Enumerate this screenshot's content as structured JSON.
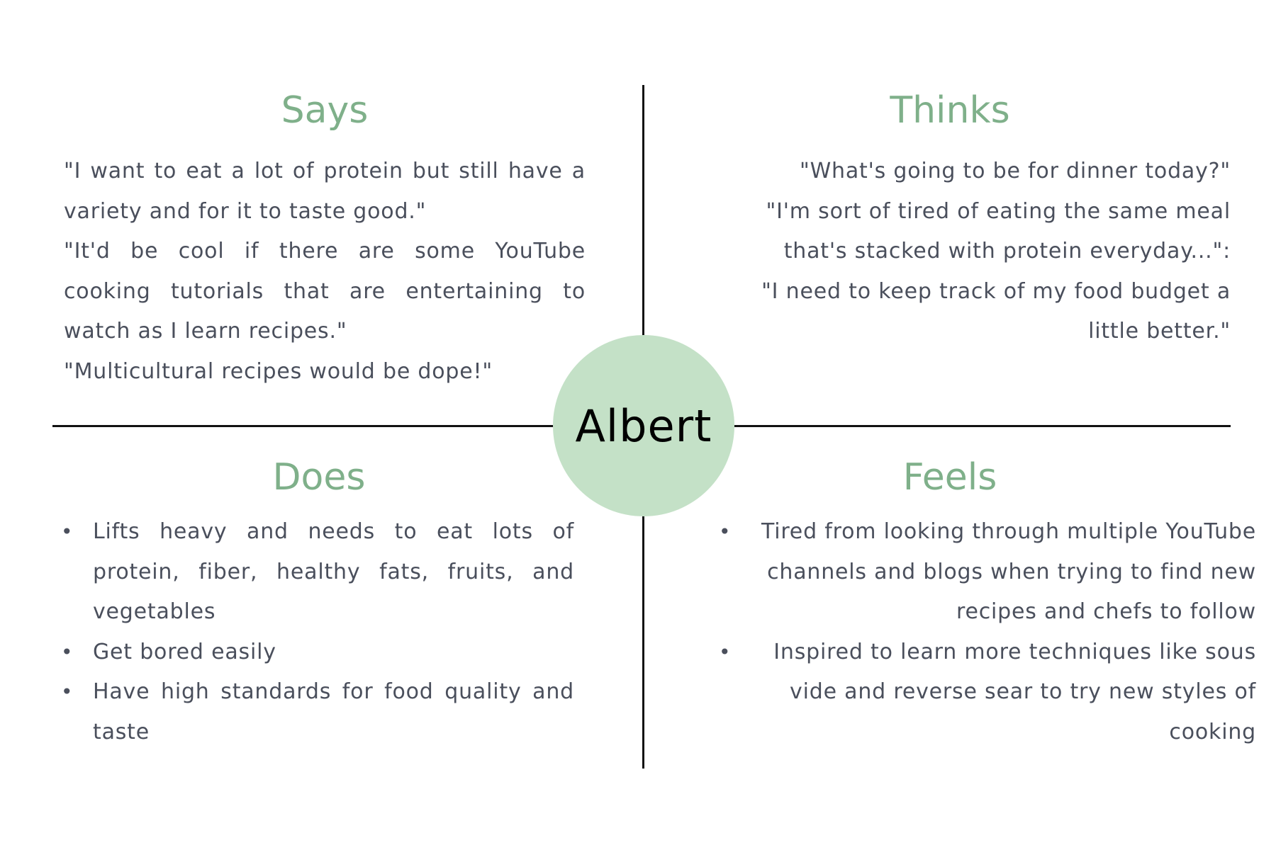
{
  "center": {
    "name": "Albert"
  },
  "colors": {
    "heading": "#7fb08a",
    "circle": "#c4e1c7",
    "body_text": "#4a4f5c",
    "lines": "#111111"
  },
  "says": {
    "title": "Says",
    "lines": [
      "\"I want to eat a lot of protein but still have a variety and for it to taste good.\"",
      "\"It'd be cool if there are some YouTube cooking tutorials that are entertaining to watch as I learn recipes.\"",
      "\"Multicultural recipes would be dope!\""
    ]
  },
  "thinks": {
    "title": "Thinks",
    "lines": [
      "\"What's going to be for dinner today?\"",
      "\"I'm sort of tired of eating the same meal that's stacked with protein everyday...\":",
      "\"I need to keep track of my food budget a little better.\""
    ]
  },
  "does": {
    "title": "Does",
    "bullet_symbol": "•",
    "items": [
      "Lifts heavy and needs to eat lots of protein, fiber, healthy fats, fruits, and vegetables",
      "Get bored easily",
      "Have high standards for food quality and taste"
    ]
  },
  "feels": {
    "title": "Feels",
    "bullet_symbol": "•",
    "items": [
      "Tired from looking through multiple YouTube channels and blogs when trying to find new recipes and chefs to follow",
      "Inspired to learn more techniques like sous vide and reverse sear to try new styles of cooking"
    ]
  }
}
